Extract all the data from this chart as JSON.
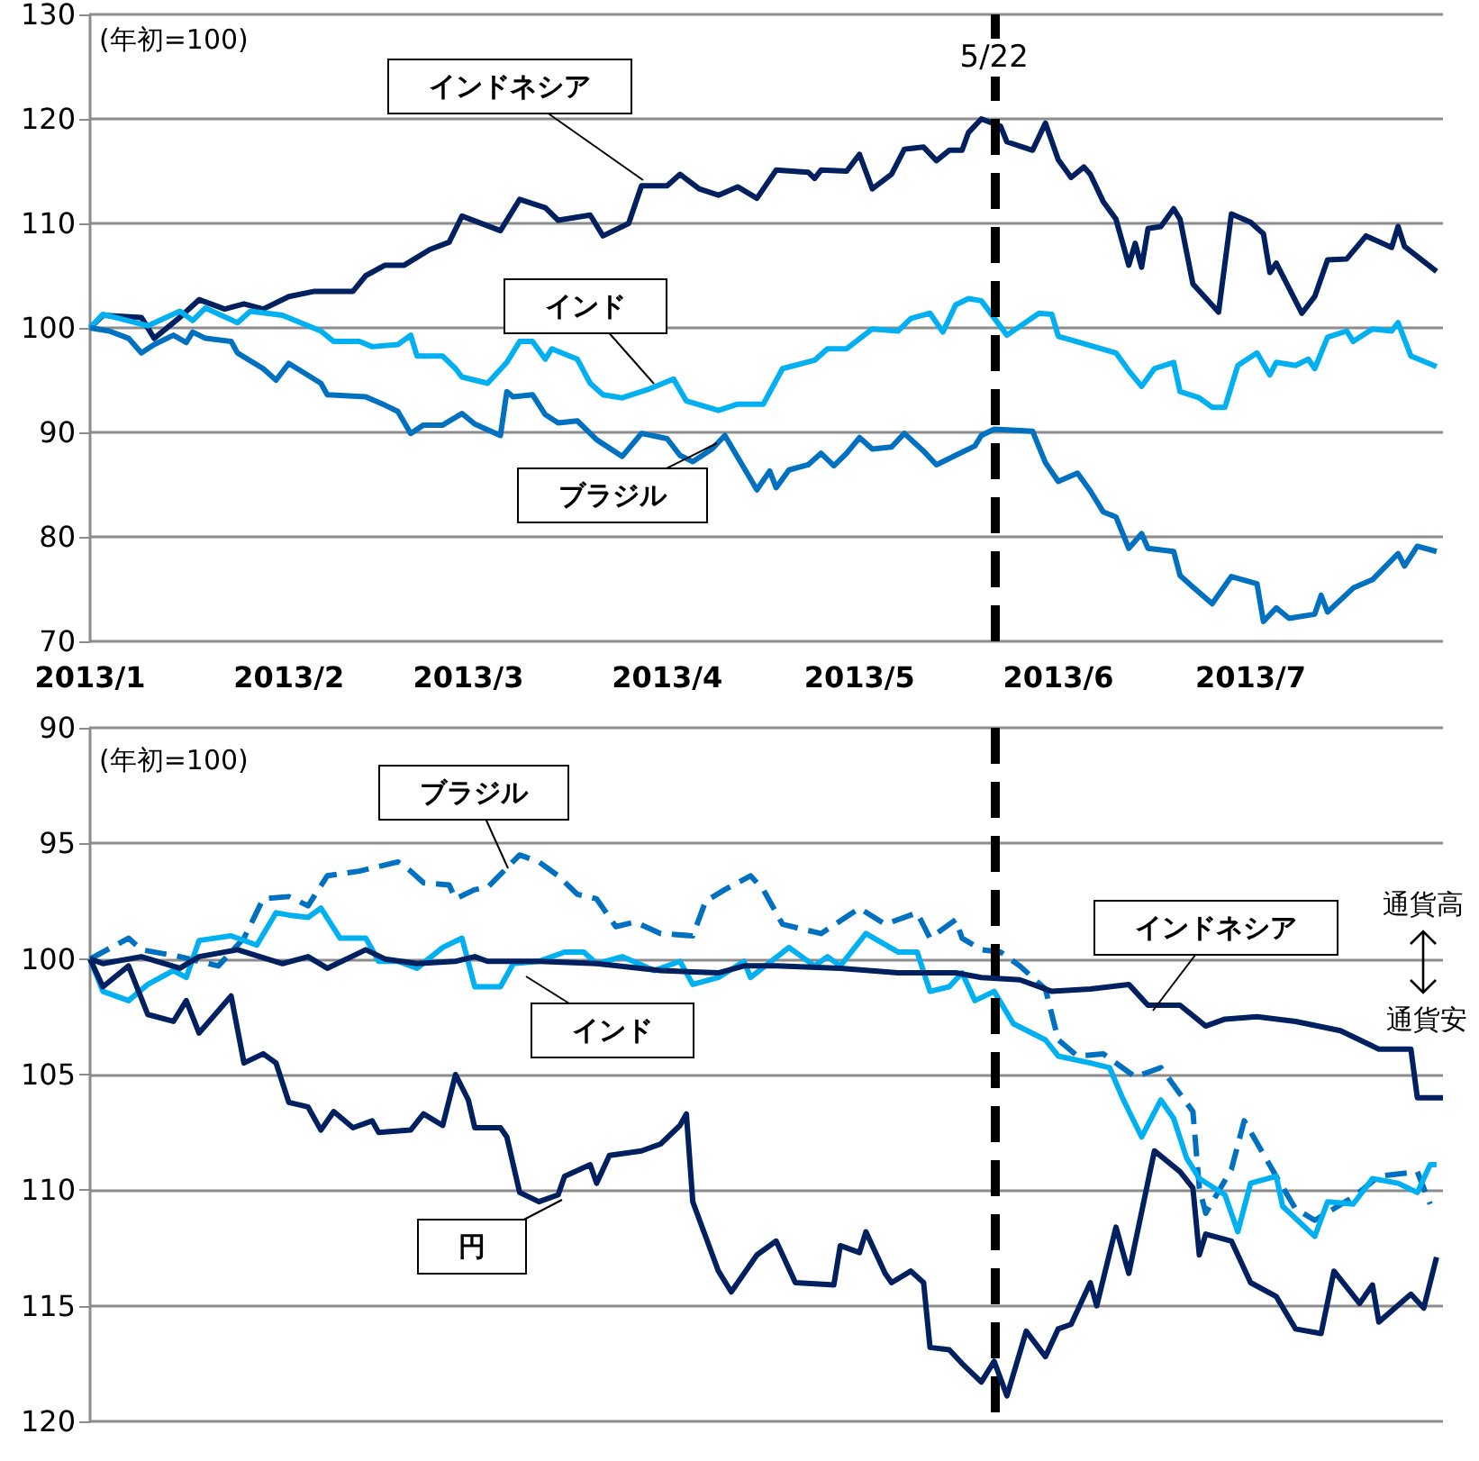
{
  "chart_data": [
    {
      "type": "line",
      "xlim": [
        "2013-01-01",
        "2013-07-31"
      ],
      "ylim": [
        70,
        130
      ],
      "yticks": [
        70,
        80,
        90,
        100,
        110,
        120,
        130
      ],
      "xticks": [
        {
          "value": "2013-01-01",
          "label": "2013/1"
        },
        {
          "value": "2013-02-01",
          "label": "2013/2"
        },
        {
          "value": "2013-03-01",
          "label": "2013/3"
        },
        {
          "value": "2013-04-01",
          "label": "2013/4"
        },
        {
          "value": "2013-05-01",
          "label": "2013/5"
        },
        {
          "value": "2013-06-01",
          "label": "2013/6"
        },
        {
          "value": "2013-07-01",
          "label": "2013/7"
        }
      ],
      "grid": "y",
      "marker": "none",
      "line_style": "solid",
      "annotations": [
        "(年初=100)"
      ],
      "ref_lines": [
        {
          "axis": "x",
          "value": "2013-05-22",
          "label": "5/22",
          "color": "#000000",
          "line_style": "dashed"
        }
      ],
      "series": [
        {
          "name": "インドネシア",
          "color": "#002060",
          "x": [
            "2013-01-01",
            "2013-01-03",
            "2013-01-09",
            "2013-01-11",
            "2013-01-15",
            "2013-01-18",
            "2013-01-22",
            "2013-01-25",
            "2013-01-28",
            "2013-02-01",
            "2013-02-05",
            "2013-02-11",
            "2013-02-13",
            "2013-02-16",
            "2013-02-19",
            "2013-02-23",
            "2013-02-26",
            "2013-02-28",
            "2013-03-06",
            "2013-03-09",
            "2013-03-13",
            "2013-03-15",
            "2013-03-20",
            "2013-03-22",
            "2013-03-26",
            "2013-03-28",
            "2013-04-01",
            "2013-04-03",
            "2013-04-06",
            "2013-04-09",
            "2013-04-12",
            "2013-04-15",
            "2013-04-18",
            "2013-04-23",
            "2013-04-24",
            "2013-04-25",
            "2013-04-29",
            "2013-05-01",
            "2013-05-03",
            "2013-05-06",
            "2013-05-08",
            "2013-05-11",
            "2013-05-13",
            "2013-05-15",
            "2013-05-17",
            "2013-05-18",
            "2013-05-20",
            "2013-05-23",
            "2013-05-24",
            "2013-05-28",
            "2013-05-30",
            "2013-06-01",
            "2013-06-03",
            "2013-06-05",
            "2013-06-06",
            "2013-06-08",
            "2013-06-10",
            "2013-06-12",
            "2013-06-13",
            "2013-06-14",
            "2013-06-15",
            "2013-06-17",
            "2013-06-19",
            "2013-06-20",
            "2013-06-22",
            "2013-06-26",
            "2013-06-28",
            "2013-07-01",
            "2013-07-03",
            "2013-07-04",
            "2013-07-05",
            "2013-07-09",
            "2013-07-11",
            "2013-07-13",
            "2013-07-16",
            "2013-07-19",
            "2013-07-23",
            "2013-07-24",
            "2013-07-25",
            "2013-07-30"
          ],
          "values": [
            100,
            101.2,
            101,
            99,
            101,
            102.7,
            101.8,
            102.3,
            101.8,
            103,
            103.5,
            103.5,
            105,
            106,
            106,
            107.5,
            108.2,
            110.7,
            109.3,
            112.3,
            111.5,
            110.3,
            110.8,
            108.8,
            110,
            113.6,
            113.6,
            114.7,
            113.3,
            112.7,
            113.5,
            112.4,
            115.1,
            114.9,
            114.3,
            115.1,
            115,
            116.6,
            113.3,
            114.7,
            117.1,
            117.3,
            116,
            117,
            117,
            118.7,
            120,
            119.3,
            117.8,
            117,
            119.6,
            116.1,
            114.4,
            115.4,
            114.7,
            112.1,
            110.4,
            106,
            108.1,
            105.8,
            109.5,
            109.7,
            111.4,
            110.4,
            104.2,
            101.5,
            110.9,
            110.1,
            109,
            105.3,
            106.2,
            101.4,
            103,
            106.5,
            106.6,
            108.8,
            107.7,
            109.7,
            107.8,
            105.4
          ]
        },
        {
          "name": "インド",
          "color": "#00b0f0",
          "x": [
            "2013-01-01",
            "2013-01-03",
            "2013-01-10",
            "2013-01-15",
            "2013-01-17",
            "2013-01-19",
            "2013-01-24",
            "2013-01-26",
            "2013-01-31",
            "2013-02-06",
            "2013-02-08",
            "2013-02-12",
            "2013-02-14",
            "2013-02-18",
            "2013-02-20",
            "2013-02-21",
            "2013-02-25",
            "2013-02-27",
            "2013-02-28",
            "2013-03-04",
            "2013-03-07",
            "2013-03-09",
            "2013-03-11",
            "2013-03-13",
            "2013-03-14",
            "2013-03-18",
            "2013-03-20",
            "2013-03-22",
            "2013-03-25",
            "2013-03-29",
            "2013-04-02",
            "2013-04-04",
            "2013-04-09",
            "2013-04-12",
            "2013-04-16",
            "2013-04-19",
            "2013-04-24",
            "2013-04-26",
            "2013-04-29",
            "2013-05-03",
            "2013-05-07",
            "2013-05-09",
            "2013-05-12",
            "2013-05-14",
            "2013-05-16",
            "2013-05-18",
            "2013-05-20",
            "2013-05-24",
            "2013-05-29",
            "2013-05-31",
            "2013-06-01",
            "2013-06-06",
            "2013-06-10",
            "2013-06-12",
            "2013-06-14",
            "2013-06-16",
            "2013-06-19",
            "2013-06-20",
            "2013-06-23",
            "2013-06-25",
            "2013-06-27",
            "2013-06-29",
            "2013-07-02",
            "2013-07-04",
            "2013-07-05",
            "2013-07-08",
            "2013-07-10",
            "2013-07-11",
            "2013-07-13",
            "2013-07-16",
            "2013-07-17",
            "2013-07-20",
            "2013-07-23",
            "2013-07-24",
            "2013-07-26",
            "2013-07-30"
          ],
          "values": [
            100,
            101.3,
            100.2,
            101.6,
            100.7,
            101.9,
            100.5,
            101.6,
            101.2,
            99.7,
            98.7,
            98.7,
            98.2,
            98.4,
            99.3,
            97.3,
            97.3,
            96.1,
            95.3,
            94.7,
            96.7,
            98.7,
            98.7,
            97,
            98,
            97,
            94.7,
            93.6,
            93.3,
            94.1,
            95.1,
            93,
            92.1,
            92.7,
            92.7,
            96.1,
            96.9,
            98,
            98,
            99.9,
            99.7,
            100.9,
            101.4,
            99.6,
            102.2,
            102.8,
            102.6,
            99.3,
            101.4,
            101.3,
            99.2,
            98.3,
            97.6,
            95.9,
            94.4,
            96.1,
            96.7,
            93.9,
            93.3,
            92.4,
            92.4,
            96.4,
            97.6,
            95.5,
            96.7,
            96.4,
            97,
            96.1,
            99.1,
            99.7,
            98.7,
            99.9,
            99.7,
            100.5,
            97.3,
            96.3
          ]
        },
        {
          "name": "ブラジル",
          "color": "#0070c0",
          "x": [
            "2013-01-01",
            "2013-01-04",
            "2013-01-07",
            "2013-01-09",
            "2013-01-11",
            "2013-01-14",
            "2013-01-16",
            "2013-01-17",
            "2013-01-19",
            "2013-01-23",
            "2013-01-24",
            "2013-01-28",
            "2013-01-30",
            "2013-02-01",
            "2013-02-06",
            "2013-02-07",
            "2013-02-13",
            "2013-02-16",
            "2013-02-18",
            "2013-02-20",
            "2013-02-22",
            "2013-02-25",
            "2013-02-28",
            "2013-03-02",
            "2013-03-06",
            "2013-03-07",
            "2013-03-08",
            "2013-03-11",
            "2013-03-13",
            "2013-03-15",
            "2013-03-18",
            "2013-03-21",
            "2013-03-25",
            "2013-03-28",
            "2013-04-01",
            "2013-04-03",
            "2013-04-05",
            "2013-04-08",
            "2013-04-10",
            "2013-04-15",
            "2013-04-17",
            "2013-04-18",
            "2013-04-20",
            "2013-04-23",
            "2013-04-25",
            "2013-04-27",
            "2013-04-29",
            "2013-05-01",
            "2013-05-03",
            "2013-05-06",
            "2013-05-08",
            "2013-05-11",
            "2013-05-13",
            "2013-05-16",
            "2013-05-19",
            "2013-05-20",
            "2013-05-22",
            "2013-05-28",
            "2013-05-30",
            "2013-06-01",
            "2013-06-04",
            "2013-06-06",
            "2013-06-08",
            "2013-06-10",
            "2013-06-12",
            "2013-06-14",
            "2013-06-15",
            "2013-06-19",
            "2013-06-20",
            "2013-06-22",
            "2013-06-25",
            "2013-06-28",
            "2013-07-02",
            "2013-07-03",
            "2013-07-05",
            "2013-07-07",
            "2013-07-11",
            "2013-07-12",
            "2013-07-13",
            "2013-07-17",
            "2013-07-20",
            "2013-07-24",
            "2013-07-25",
            "2013-07-27",
            "2013-07-30"
          ],
          "values": [
            100,
            99.7,
            99,
            97.6,
            98.4,
            99.3,
            98.6,
            99.6,
            99,
            98.7,
            97.6,
            96.1,
            95,
            96.6,
            94.7,
            93.6,
            93.4,
            92.6,
            92,
            89.9,
            90.7,
            90.7,
            91.8,
            90.8,
            89.7,
            93.9,
            93.4,
            93.6,
            91.7,
            90.9,
            91.1,
            89.3,
            87.7,
            89.9,
            89.4,
            87.8,
            87.2,
            88.4,
            89.7,
            84.5,
            86.3,
            84.7,
            86.4,
            86.9,
            88,
            86.8,
            88,
            89.5,
            88.4,
            88.6,
            89.9,
            88.2,
            86.9,
            87.8,
            88.7,
            89.7,
            90.3,
            90.1,
            87.1,
            85.3,
            86.1,
            84.4,
            82.4,
            81.9,
            78.9,
            80.3,
            78.9,
            78.6,
            76.3,
            75.2,
            73.6,
            76.2,
            75.5,
            71.9,
            73.2,
            72.2,
            72.6,
            74.4,
            72.8,
            75.1,
            75.9,
            78.4,
            77.2,
            79.1,
            78.6
          ]
        }
      ]
    },
    {
      "type": "line",
      "xlim": [
        "2013-01-01",
        "2013-07-31"
      ],
      "ylim": [
        120,
        90
      ],
      "yticks": [
        90,
        95,
        100,
        105,
        110,
        115,
        120
      ],
      "grid": "y",
      "marker": "none",
      "line_style": "solid",
      "tick_labels": "y",
      "annotations": [
        "(年初=100)",
        "通貨高",
        "通貨安"
      ],
      "ref_lines": [
        {
          "axis": "x",
          "value": "2013-05-22",
          "color": "#000000",
          "line_style": "dashed"
        }
      ],
      "series": [
        {
          "name": "ブラジル",
          "color": "#0070c0",
          "line_style": "dashed",
          "x": [
            "2013-01-01",
            "2013-01-07",
            "2013-01-09",
            "2013-01-15",
            "2013-01-21",
            "2013-01-25",
            "2013-01-28",
            "2013-02-01",
            "2013-02-04",
            "2013-02-07",
            "2013-02-12",
            "2013-02-18",
            "2013-02-20",
            "2013-02-22",
            "2013-02-26",
            "2013-02-27",
            "2013-03-02",
            "2013-03-04",
            "2013-03-09",
            "2013-03-12",
            "2013-03-15",
            "2013-03-18",
            "2013-03-21",
            "2013-03-24",
            "2013-03-27",
            "2013-03-31",
            "2013-04-05",
            "2013-04-07",
            "2013-04-10",
            "2013-04-14",
            "2013-04-16",
            "2013-04-19",
            "2013-04-25",
            "2013-05-01",
            "2013-05-05",
            "2013-05-10",
            "2013-05-12",
            "2013-05-16",
            "2013-05-17",
            "2013-05-20",
            "2013-05-23",
            "2013-05-26",
            "2013-05-30",
            "2013-06-01",
            "2013-06-04",
            "2013-06-08",
            "2013-06-13",
            "2013-06-17",
            "2013-06-22",
            "2013-06-23",
            "2013-06-24",
            "2013-06-28",
            "2013-06-30",
            "2013-07-05",
            "2013-07-08",
            "2013-07-11",
            "2013-07-17",
            "2013-07-21",
            "2013-07-27",
            "2013-07-29"
          ],
          "values": [
            100,
            99.1,
            99.6,
            99.9,
            100.3,
            99.1,
            97.4,
            97.3,
            97.7,
            96.4,
            96.2,
            95.8,
            96.2,
            96.7,
            96.8,
            97.4,
            97,
            96.9,
            95.5,
            95.8,
            96.4,
            97.2,
            97.4,
            98.6,
            98.4,
            98.9,
            99,
            97.5,
            97,
            96.4,
            97,
            98.5,
            98.9,
            97.8,
            98.5,
            98,
            99.1,
            98.3,
            99.1,
            99.6,
            99.7,
            100.3,
            101.3,
            103.5,
            104.2,
            104.1,
            105.1,
            104.7,
            106.6,
            109.9,
            111,
            109.1,
            107,
            109.4,
            110.8,
            111.3,
            110.3,
            109.4,
            109.2,
            110.6
          ]
        },
        {
          "name": "インド",
          "color": "#00b0f0",
          "x": [
            "2013-01-01",
            "2013-01-03",
            "2013-01-07",
            "2013-01-10",
            "2013-01-14",
            "2013-01-16",
            "2013-01-18",
            "2013-01-23",
            "2013-01-27",
            "2013-01-30",
            "2013-02-01",
            "2013-02-04",
            "2013-02-06",
            "2013-02-09",
            "2013-02-13",
            "2013-02-15",
            "2013-02-18",
            "2013-02-21",
            "2013-02-25",
            "2013-02-28",
            "2013-03-02",
            "2013-03-06",
            "2013-03-08",
            "2013-03-12",
            "2013-03-16",
            "2013-03-19",
            "2013-03-21",
            "2013-03-25",
            "2013-03-30",
            "2013-04-03",
            "2013-04-05",
            "2013-04-09",
            "2013-04-13",
            "2013-04-14",
            "2013-04-20",
            "2013-04-24",
            "2013-04-26",
            "2013-04-28",
            "2013-05-02",
            "2013-05-07",
            "2013-05-10",
            "2013-05-12",
            "2013-05-15",
            "2013-05-17",
            "2013-05-19",
            "2013-05-22",
            "2013-05-25",
            "2013-05-30",
            "2013-06-01",
            "2013-06-06",
            "2013-06-09",
            "2013-06-11",
            "2013-06-14",
            "2013-06-17",
            "2013-06-19",
            "2013-06-21",
            "2013-06-23",
            "2013-06-27",
            "2013-06-29",
            "2013-07-01",
            "2013-07-05",
            "2013-07-06",
            "2013-07-11",
            "2013-07-13",
            "2013-07-17",
            "2013-07-20",
            "2013-07-24",
            "2013-07-27",
            "2013-07-29",
            "2013-07-30"
          ],
          "values": [
            100,
            101.4,
            101.8,
            101.1,
            100.5,
            100.8,
            99.2,
            99,
            99.4,
            98,
            98.1,
            98.2,
            97.8,
            99.1,
            99.1,
            100.1,
            100.1,
            100.4,
            99.5,
            99.1,
            101.2,
            101.2,
            100.2,
            100.1,
            99.7,
            99.7,
            100.2,
            99.9,
            100.5,
            100.1,
            101.1,
            100.8,
            100.1,
            100.8,
            99.5,
            100.3,
            99.9,
            100.3,
            98.9,
            99.7,
            99.7,
            101.4,
            101.2,
            100.6,
            101.8,
            101.4,
            102.8,
            103.5,
            104.2,
            104.5,
            104.7,
            106,
            107.7,
            106.1,
            106.9,
            108.6,
            109.5,
            110.2,
            111.8,
            109.7,
            109.4,
            110.7,
            112,
            110.5,
            110.6,
            109.5,
            109.7,
            110.1,
            108.9,
            108.9
          ]
        },
        {
          "name": "インドネシア",
          "color": "#002060",
          "x": [
            "2013-01-01",
            "2013-01-03",
            "2013-01-09",
            "2013-01-15",
            "2013-01-18",
            "2013-01-24",
            "2013-01-31",
            "2013-02-04",
            "2013-02-07",
            "2013-02-13",
            "2013-02-16",
            "2013-02-21",
            "2013-02-27",
            "2013-03-02",
            "2013-03-04",
            "2013-03-12",
            "2013-03-21",
            "2013-03-31",
            "2013-04-09",
            "2013-04-13",
            "2013-04-18",
            "2013-04-28",
            "2013-05-07",
            "2013-05-16",
            "2013-05-20",
            "2013-05-26",
            "2013-05-31",
            "2013-06-06",
            "2013-06-12",
            "2013-06-15",
            "2013-06-20",
            "2013-06-24",
            "2013-06-27",
            "2013-07-02",
            "2013-07-08",
            "2013-07-15",
            "2013-07-21",
            "2013-07-26",
            "2013-07-27",
            "2013-07-31"
          ],
          "values": [
            100,
            100.2,
            99.9,
            100.4,
            99.9,
            99.6,
            100.2,
            99.9,
            100.4,
            99.6,
            100,
            100.2,
            100.1,
            99.9,
            100.1,
            100.1,
            100.2,
            100.5,
            100.6,
            100.3,
            100.3,
            100.4,
            100.6,
            100.6,
            100.8,
            100.9,
            101.4,
            101.3,
            101.1,
            102,
            102,
            102.9,
            102.6,
            102.5,
            102.7,
            103.1,
            103.9,
            103.9,
            106,
            106
          ]
        },
        {
          "name": "円",
          "color": "#002060",
          "x": [
            "2013-01-01",
            "2013-01-03",
            "2013-01-07",
            "2013-01-10",
            "2013-01-14",
            "2013-01-16",
            "2013-01-18",
            "2013-01-23",
            "2013-01-25",
            "2013-01-28",
            "2013-01-30",
            "2013-02-01",
            "2013-02-04",
            "2013-02-06",
            "2013-02-08",
            "2013-02-11",
            "2013-02-14",
            "2013-02-15",
            "2013-02-20",
            "2013-02-22",
            "2013-02-25",
            "2013-02-27",
            "2013-03-01",
            "2013-03-02",
            "2013-03-06",
            "2013-03-07",
            "2013-03-09",
            "2013-03-12",
            "2013-03-15",
            "2013-03-16",
            "2013-03-20",
            "2013-03-21",
            "2013-03-23",
            "2013-03-28",
            "2013-03-31",
            "2013-04-03",
            "2013-04-04",
            "2013-04-05",
            "2013-04-09",
            "2013-04-11",
            "2013-04-15",
            "2013-04-18",
            "2013-04-21",
            "2013-04-27",
            "2013-04-28",
            "2013-05-01",
            "2013-05-02",
            "2013-05-05",
            "2013-05-06",
            "2013-05-09",
            "2013-05-11",
            "2013-05-12",
            "2013-05-15",
            "2013-05-17",
            "2013-05-20",
            "2013-05-22",
            "2013-05-24",
            "2013-05-27",
            "2013-05-30",
            "2013-06-01",
            "2013-06-03",
            "2013-06-06",
            "2013-06-07",
            "2013-06-10",
            "2013-06-12",
            "2013-06-16",
            "2013-06-20",
            "2013-06-22",
            "2013-06-23",
            "2013-06-24",
            "2013-06-28",
            "2013-07-01",
            "2013-07-05",
            "2013-07-08",
            "2013-07-12",
            "2013-07-14",
            "2013-07-18",
            "2013-07-20",
            "2013-07-21",
            "2013-07-26",
            "2013-07-28",
            "2013-07-30"
          ],
          "values": [
            100,
            101.2,
            100.3,
            102.4,
            102.7,
            101.8,
            103.2,
            101.6,
            104.5,
            104.1,
            104.5,
            106.2,
            106.4,
            107.4,
            106.6,
            107.3,
            107,
            107.5,
            107.4,
            106.7,
            107.2,
            105,
            106.1,
            107.3,
            107.3,
            107.7,
            110.1,
            110.5,
            110.2,
            109.4,
            108.9,
            109.7,
            108.5,
            108.3,
            108,
            107.2,
            106.7,
            110.5,
            113.5,
            114.4,
            112.8,
            112.2,
            114,
            114.1,
            112.4,
            112.7,
            111.8,
            113.6,
            114,
            113.5,
            114,
            116.8,
            116.9,
            117.5,
            118.3,
            117.4,
            118.9,
            116.1,
            117.2,
            116,
            115.8,
            114,
            115,
            111.6,
            113.6,
            108.3,
            109.2,
            109.9,
            112.8,
            111.9,
            112.2,
            114,
            114.6,
            116,
            116.2,
            113.5,
            114.9,
            114.1,
            115.7,
            114.5,
            115.1,
            112.9
          ]
        }
      ]
    }
  ]
}
